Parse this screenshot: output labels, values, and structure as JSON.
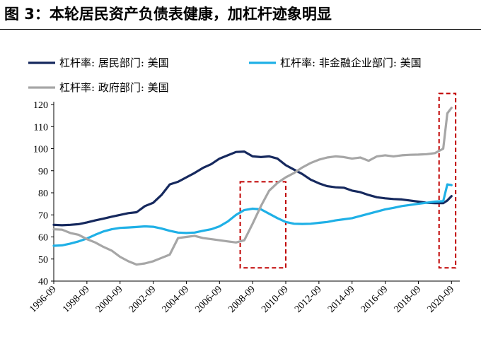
{
  "figure": {
    "title": "图 3：本轮居民资产负债表健康，加杠杆迹象明显"
  },
  "colors": {
    "household": "#16295e",
    "nonfinancial": "#1fb0e6",
    "government": "#a6a6a6",
    "highlight": "#c00000"
  },
  "chart_data": {
    "type": "line",
    "legend_position": "top",
    "grid": false,
    "ylim": [
      40,
      120
    ],
    "yticks": [
      40,
      50,
      60,
      70,
      80,
      90,
      100,
      110,
      120
    ],
    "xlim": [
      "1996-09",
      "2021-03"
    ],
    "xticks": [
      "1996-09",
      "1998-09",
      "2000-09",
      "2002-09",
      "2004-09",
      "2006-09",
      "2008-09",
      "2010-09",
      "2012-09",
      "2014-09",
      "2016-09",
      "2018-09",
      "2020-09"
    ],
    "highlight_periods": [
      {
        "from": "2007-12",
        "to": "2010-09",
        "y_from": 46,
        "y_to": 85
      },
      {
        "from": "2019-12",
        "to": "2020-12",
        "y_from": 46,
        "y_to": 125
      }
    ],
    "series": [
      {
        "name": "杠杆率: 居民部门: 美国",
        "color_key": "household",
        "points": [
          [
            "1996-09",
            65.5
          ],
          [
            "1997-03",
            65.3
          ],
          [
            "1997-09",
            65.5
          ],
          [
            "1998-03",
            65.8
          ],
          [
            "1998-09",
            66.6
          ],
          [
            "1999-03",
            67.5
          ],
          [
            "1999-09",
            68.3
          ],
          [
            "2000-03",
            69.2
          ],
          [
            "2000-09",
            70
          ],
          [
            "2001-03",
            70.8
          ],
          [
            "2001-09",
            71.2
          ],
          [
            "2002-03",
            74
          ],
          [
            "2002-09",
            75.5
          ],
          [
            "2003-03",
            79
          ],
          [
            "2003-09",
            83.8
          ],
          [
            "2004-03",
            85
          ],
          [
            "2004-09",
            87
          ],
          [
            "2005-03",
            89
          ],
          [
            "2005-09",
            91.3
          ],
          [
            "2006-03",
            93
          ],
          [
            "2006-09",
            95.5
          ],
          [
            "2007-03",
            97
          ],
          [
            "2007-09",
            98.5
          ],
          [
            "2008-03",
            98.7
          ],
          [
            "2008-09",
            96.5
          ],
          [
            "2009-03",
            96.2
          ],
          [
            "2009-09",
            96.5
          ],
          [
            "2010-03",
            95.5
          ],
          [
            "2010-09",
            92.5
          ],
          [
            "2011-03",
            90.5
          ],
          [
            "2011-09",
            88.5
          ],
          [
            "2012-03",
            86
          ],
          [
            "2012-09",
            84.3
          ],
          [
            "2013-03",
            83
          ],
          [
            "2013-09",
            82.5
          ],
          [
            "2014-03",
            82.3
          ],
          [
            "2014-09",
            81
          ],
          [
            "2015-03",
            80.3
          ],
          [
            "2015-09",
            79
          ],
          [
            "2016-03",
            78
          ],
          [
            "2016-09",
            77.5
          ],
          [
            "2017-03",
            77.2
          ],
          [
            "2017-09",
            77
          ],
          [
            "2018-03",
            76.5
          ],
          [
            "2018-09",
            76
          ],
          [
            "2019-03",
            75.5
          ],
          [
            "2019-09",
            75.3
          ],
          [
            "2020-03",
            75.3
          ],
          [
            "2020-06",
            76.5
          ],
          [
            "2020-09",
            78.5
          ]
        ]
      },
      {
        "name": "杠杆率: 非金融企业部门: 美国",
        "color_key": "nonfinancial",
        "points": [
          [
            "1996-09",
            56
          ],
          [
            "1997-03",
            56.2
          ],
          [
            "1997-09",
            57
          ],
          [
            "1998-03",
            58
          ],
          [
            "1998-09",
            59.3
          ],
          [
            "1999-03",
            61
          ],
          [
            "1999-09",
            62.5
          ],
          [
            "2000-03",
            63.5
          ],
          [
            "2000-09",
            64.1
          ],
          [
            "2001-03",
            64.3
          ],
          [
            "2001-09",
            64.5
          ],
          [
            "2002-03",
            64.8
          ],
          [
            "2002-09",
            64.6
          ],
          [
            "2003-03",
            63.8
          ],
          [
            "2003-09",
            62.8
          ],
          [
            "2004-03",
            62
          ],
          [
            "2004-09",
            61.8
          ],
          [
            "2005-03",
            62
          ],
          [
            "2005-09",
            62.8
          ],
          [
            "2006-03",
            63.5
          ],
          [
            "2006-09",
            64.8
          ],
          [
            "2007-03",
            67
          ],
          [
            "2007-09",
            70
          ],
          [
            "2008-03",
            72.2
          ],
          [
            "2008-09",
            72.8
          ],
          [
            "2009-03",
            72.5
          ],
          [
            "2009-09",
            70.5
          ],
          [
            "2010-03",
            68.5
          ],
          [
            "2010-09",
            66.8
          ],
          [
            "2011-03",
            66
          ],
          [
            "2011-09",
            65.9
          ],
          [
            "2012-03",
            66
          ],
          [
            "2012-09",
            66.4
          ],
          [
            "2013-03",
            66.8
          ],
          [
            "2013-09",
            67.5
          ],
          [
            "2014-03",
            68
          ],
          [
            "2014-09",
            68.5
          ],
          [
            "2015-03",
            69.5
          ],
          [
            "2015-09",
            70.5
          ],
          [
            "2016-03",
            71.5
          ],
          [
            "2016-09",
            72.5
          ],
          [
            "2017-03",
            73.2
          ],
          [
            "2017-09",
            74
          ],
          [
            "2018-03",
            74.5
          ],
          [
            "2018-09",
            75
          ],
          [
            "2019-03",
            75.5
          ],
          [
            "2019-09",
            76
          ],
          [
            "2020-03",
            76.2
          ],
          [
            "2020-06",
            83.8
          ],
          [
            "2020-09",
            83.5
          ]
        ]
      },
      {
        "name": "杠杆率: 政府部门: 美国",
        "color_key": "government",
        "points": [
          [
            "1996-09",
            63.5
          ],
          [
            "1997-03",
            63.3
          ],
          [
            "1997-09",
            61.8
          ],
          [
            "1998-03",
            61
          ],
          [
            "1998-09",
            59
          ],
          [
            "1999-03",
            57.5
          ],
          [
            "1999-09",
            55.5
          ],
          [
            "2000-03",
            53.8
          ],
          [
            "2000-09",
            51
          ],
          [
            "2001-03",
            49
          ],
          [
            "2001-09",
            47.5
          ],
          [
            "2002-03",
            48
          ],
          [
            "2002-09",
            49
          ],
          [
            "2003-03",
            50.5
          ],
          [
            "2003-09",
            52
          ],
          [
            "2004-03",
            59.5
          ],
          [
            "2004-09",
            60
          ],
          [
            "2005-03",
            60.5
          ],
          [
            "2005-09",
            59.5
          ],
          [
            "2006-03",
            59
          ],
          [
            "2006-09",
            58.5
          ],
          [
            "2007-03",
            58
          ],
          [
            "2007-09",
            57.5
          ],
          [
            "2008-03",
            58.5
          ],
          [
            "2008-09",
            66
          ],
          [
            "2009-03",
            74
          ],
          [
            "2009-09",
            81
          ],
          [
            "2010-03",
            84.5
          ],
          [
            "2010-09",
            87
          ],
          [
            "2011-03",
            89
          ],
          [
            "2011-09",
            91.5
          ],
          [
            "2012-03",
            93.5
          ],
          [
            "2012-09",
            95
          ],
          [
            "2013-03",
            96
          ],
          [
            "2013-09",
            96.5
          ],
          [
            "2014-03",
            96.2
          ],
          [
            "2014-09",
            95.5
          ],
          [
            "2015-03",
            96
          ],
          [
            "2015-09",
            94.5
          ],
          [
            "2016-03",
            96.5
          ],
          [
            "2016-09",
            97
          ],
          [
            "2017-03",
            96.5
          ],
          [
            "2017-09",
            97
          ],
          [
            "2018-03",
            97.2
          ],
          [
            "2018-09",
            97.3
          ],
          [
            "2019-03",
            97.5
          ],
          [
            "2019-09",
            98
          ],
          [
            "2020-03",
            100
          ],
          [
            "2020-06",
            116
          ],
          [
            "2020-09",
            118.5
          ]
        ]
      }
    ]
  }
}
